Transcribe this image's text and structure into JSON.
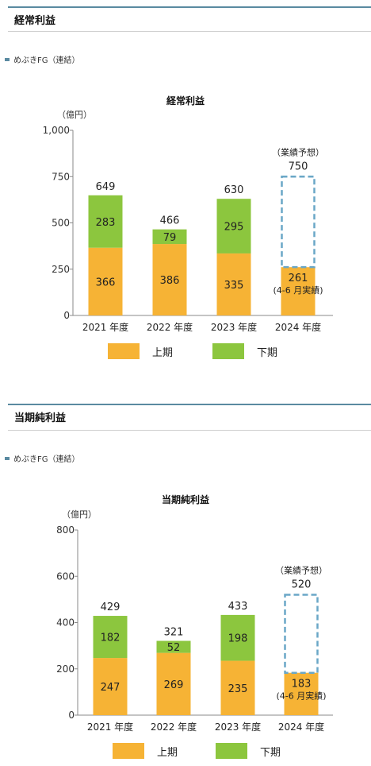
{
  "colors": {
    "first_half": "#f6b335",
    "second_half": "#8cc63e",
    "forecast": "#6aa7c7",
    "accent": "#5a8aa1"
  },
  "sections": [
    {
      "title": "経常利益",
      "subtitle": "めぶきFG（連結）",
      "chart_title": "経常利益",
      "unit": "（億円）",
      "legend": {
        "first": "上期",
        "second": "下期"
      },
      "chart_data": {
        "type": "bar",
        "title": "経常利益",
        "ylabel": "（億円）",
        "ylim": [
          0,
          1000
        ],
        "yticks": [
          0,
          250,
          500,
          750,
          1000
        ],
        "ytick_labels": [
          "0",
          "250",
          "500",
          "750",
          "1,000"
        ],
        "categories": [
          "2021 年度",
          "2022 年度",
          "2023 年度",
          "2024 年度"
        ],
        "series": [
          {
            "name": "上期",
            "values": [
              366,
              386,
              335,
              261
            ]
          },
          {
            "name": "下期",
            "values": [
              283,
              79,
              295,
              null
            ]
          }
        ],
        "totals": [
          "649",
          "466",
          "630",
          "750"
        ],
        "forecast": {
          "label": "（業績予想）",
          "value": 750,
          "actual_label": "261",
          "actual_note": "(4-6 月実績)"
        }
      }
    },
    {
      "title": "当期純利益",
      "subtitle": "めぶきFG（連結）",
      "chart_title": "当期純利益",
      "unit": "（億円）",
      "legend": {
        "first": "上期",
        "second": "下期"
      },
      "chart_data": {
        "type": "bar",
        "title": "当期純利益",
        "ylabel": "（億円）",
        "ylim": [
          0,
          800
        ],
        "yticks": [
          0,
          200,
          400,
          600,
          800
        ],
        "ytick_labels": [
          "0",
          "200",
          "400",
          "600",
          "800"
        ],
        "categories": [
          "2021 年度",
          "2022 年度",
          "2023 年度",
          "2024 年度"
        ],
        "series": [
          {
            "name": "上期",
            "values": [
              247,
              269,
              235,
              183
            ]
          },
          {
            "name": "下期",
            "values": [
              182,
              52,
              198,
              null
            ]
          }
        ],
        "totals": [
          "429",
          "321",
          "433",
          "520"
        ],
        "forecast": {
          "label": "（業績予想）",
          "value": 520,
          "actual_label": "183",
          "actual_note": "(4-6 月実績)"
        }
      }
    }
  ]
}
